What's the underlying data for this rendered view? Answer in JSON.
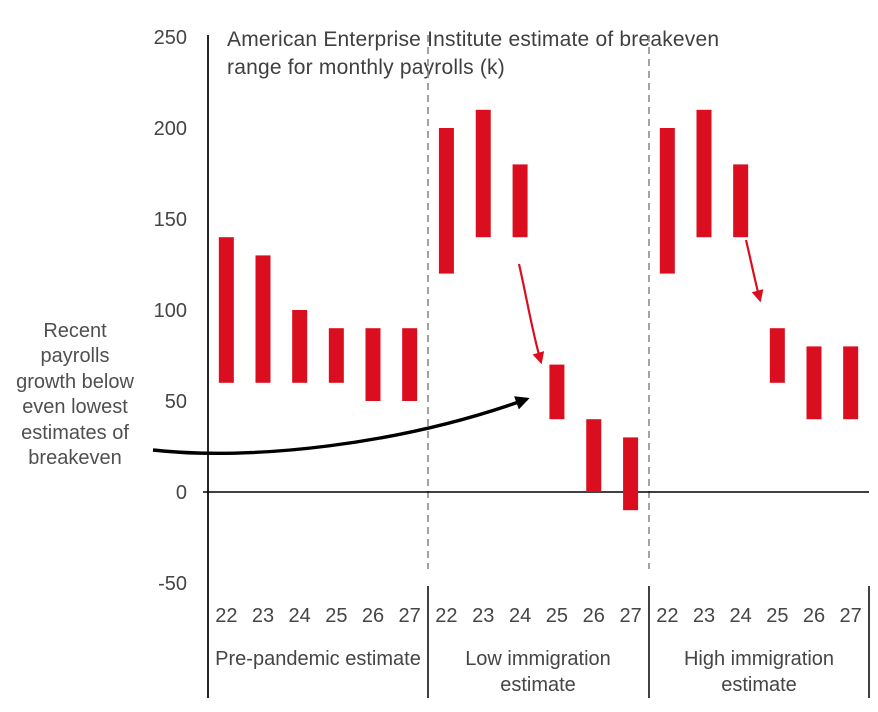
{
  "title": "American Enterprise Institute estimate of breakeven range for monthly payrolls (k)",
  "title_display": "American Enterprise Institute estimate of breakeven\nrange for monthly payrolls (k)",
  "annotation": {
    "text": "Recent\npayrolls\ngrowth below\neven lowest\nestimates of\nbreakeven",
    "arrow_color": "#000000"
  },
  "colors": {
    "bar_red": "#da0e1e",
    "arrow_red": "#da0e1e",
    "arrow_black": "#000000",
    "axis_black": "#000000",
    "dashed_gray": "#8c8c8c",
    "text_gray": "#454545",
    "background": "#ffffff"
  },
  "chart_data": {
    "type": "bar",
    "subtype": "floating-range-bars",
    "title": "American Enterprise Institute estimate of breakeven range for monthly payrolls (k)",
    "xlabel": "",
    "ylabel": "",
    "ylim": [
      -50,
      250
    ],
    "yticks": [
      250,
      200,
      150,
      100,
      50,
      0,
      -50
    ],
    "grid": false,
    "legend": false,
    "categories": [
      "22",
      "23",
      "24",
      "25",
      "26",
      "27"
    ],
    "bar_color": "#da0e1e",
    "groups": [
      {
        "label": "Pre-pandemic estimate",
        "ranges": [
          [
            60,
            140
          ],
          [
            60,
            130
          ],
          [
            60,
            100
          ],
          [
            60,
            90
          ],
          [
            50,
            90
          ],
          [
            50,
            90
          ]
        ]
      },
      {
        "label": "Low immigration\nestimate",
        "ranges": [
          [
            120,
            200
          ],
          [
            140,
            210
          ],
          [
            140,
            180
          ],
          [
            40,
            70
          ],
          [
            0,
            40
          ],
          [
            -10,
            30
          ]
        ]
      },
      {
        "label": "High immigration\nestimate",
        "ranges": [
          [
            120,
            200
          ],
          [
            140,
            210
          ],
          [
            140,
            180
          ],
          [
            60,
            90
          ],
          [
            40,
            80
          ],
          [
            40,
            80
          ]
        ]
      }
    ],
    "annotations": [
      {
        "name": "annotation-arrow",
        "color": "#000000",
        "note": "curved arrow from side note to the 2025 bar of the low immigration group"
      },
      {
        "name": "low-immigration-drop-arrow",
        "color": "#da0e1e",
        "note": "red arrow from 2024 bar down to 2025 bar in low immigration group"
      },
      {
        "name": "high-immigration-drop-arrow",
        "color": "#da0e1e",
        "note": "red arrow from 2024 bar down to 2025 bar in high immigration group"
      }
    ]
  }
}
